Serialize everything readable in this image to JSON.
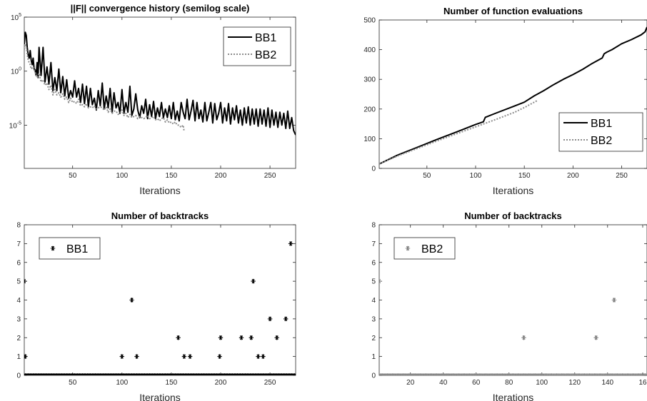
{
  "chart_data": [
    {
      "id": "p1",
      "type": "line",
      "title": "||F|| convergence history (semilog scale)",
      "xlabel": "Iterations",
      "ylabel": "",
      "yscale": "log",
      "xlim": [
        1,
        276
      ],
      "ylim": [
        -9,
        5
      ],
      "xticks": [
        50,
        100,
        150,
        200,
        250
      ],
      "yticks": [
        {
          "v": 5,
          "base": "10",
          "exp": "5"
        },
        {
          "v": 0,
          "base": "10",
          "exp": "0"
        },
        {
          "v": -5,
          "base": "10",
          "exp": "-5"
        }
      ],
      "legend": "top-right",
      "series": [
        {
          "name": "BB1",
          "style": "solid",
          "color": "#000000",
          "width": 2,
          "x": [
            1,
            2,
            3,
            4,
            5,
            6,
            7,
            8,
            9,
            10,
            11,
            12,
            13,
            14,
            15,
            16,
            18,
            20,
            22,
            24,
            26,
            28,
            30,
            32,
            34,
            36,
            38,
            40,
            42,
            44,
            46,
            48,
            50,
            52,
            54,
            56,
            58,
            60,
            62,
            64,
            66,
            68,
            70,
            72,
            74,
            76,
            78,
            80,
            82,
            84,
            86,
            88,
            90,
            92,
            94,
            96,
            98,
            100,
            102,
            104,
            106,
            108,
            110,
            112,
            114,
            116,
            118,
            120,
            122,
            124,
            126,
            128,
            130,
            132,
            134,
            136,
            138,
            140,
            142,
            144,
            146,
            148,
            150,
            152,
            154,
            156,
            158,
            160,
            162,
            164,
            166,
            168,
            170,
            172,
            174,
            176,
            178,
            180,
            182,
            184,
            186,
            188,
            190,
            192,
            194,
            196,
            198,
            200,
            202,
            204,
            206,
            208,
            210,
            212,
            214,
            216,
            218,
            220,
            222,
            224,
            226,
            228,
            230,
            232,
            234,
            236,
            238,
            240,
            242,
            244,
            246,
            248,
            250,
            252,
            254,
            256,
            258,
            260,
            262,
            264,
            266,
            268,
            270,
            272,
            274,
            276
          ],
          "y": [
            2.5,
            3.6,
            3.3,
            2.2,
            1.5,
            1.2,
            1.9,
            1.0,
            0.6,
            1.2,
            0.2,
            0.1,
            -0.4,
            0.8,
            -0.6,
            2.2,
            -0.4,
            2.2,
            -1.0,
            0.4,
            -1.2,
            0.8,
            -1.8,
            -0.6,
            -1.8,
            0.2,
            -2.0,
            -0.5,
            -2.3,
            -0.8,
            -2.5,
            -1.8,
            -2.4,
            -0.9,
            -2.4,
            -1.6,
            -2.9,
            -1.2,
            -3.0,
            -1.4,
            -3.3,
            -1.6,
            -3.1,
            -2.5,
            -3.6,
            -1.8,
            -3.2,
            -1.1,
            -3.5,
            -2.3,
            -3.4,
            -1.6,
            -3.8,
            -2.0,
            -3.4,
            -2.9,
            -3.9,
            -1.7,
            -3.9,
            -2.9,
            -3.8,
            -1.4,
            -4.1,
            -3.5,
            -2.1,
            -3.6,
            -4.3,
            -3.2,
            -3.9,
            -2.6,
            -4.4,
            -3.1,
            -4.2,
            -2.8,
            -4.4,
            -3.4,
            -4.2,
            -2.9,
            -4.3,
            -3.5,
            -4.3,
            -3.2,
            -4.4,
            -2.9,
            -4.5,
            -3.7,
            -4.6,
            -2.9,
            -3.8,
            -4.4,
            -2.6,
            -4.5,
            -3.7,
            -2.7,
            -4.6,
            -2.9,
            -4.4,
            -3.6,
            -4.7,
            -2.9,
            -4.6,
            -3.8,
            -2.9,
            -4.8,
            -3.0,
            -4.5,
            -3.9,
            -2.9,
            -4.8,
            -3.4,
            -4.6,
            -3.0,
            -4.9,
            -3.4,
            -4.5,
            -3.2,
            -4.8,
            -3.6,
            -5.0,
            -3.4,
            -4.8,
            -3.3,
            -5.0,
            -3.5,
            -4.9,
            -3.5,
            -5.1,
            -3.5,
            -4.9,
            -3.6,
            -5.1,
            -3.4,
            -5.2,
            -3.6,
            -5.0,
            -3.8,
            -5.2,
            -3.8,
            -5.0,
            -3.9,
            -5.3,
            -3.7,
            -5.3,
            -4.3,
            -5.5,
            -5.9
          ]
        },
        {
          "name": "BB2",
          "style": "dotted",
          "color": "#8c8c8c",
          "width": 2,
          "x": [
            1,
            2,
            3,
            4,
            5,
            6,
            7,
            8,
            10,
            12,
            14,
            16,
            18,
            20,
            22,
            24,
            26,
            28,
            30,
            32,
            34,
            36,
            38,
            40,
            42,
            44,
            46,
            48,
            50,
            52,
            54,
            56,
            58,
            60,
            62,
            64,
            66,
            68,
            70,
            72,
            74,
            76,
            78,
            80,
            82,
            84,
            86,
            88,
            90,
            92,
            94,
            96,
            98,
            100,
            102,
            104,
            106,
            108,
            110,
            112,
            114,
            116,
            118,
            120,
            122,
            124,
            126,
            128,
            130,
            132,
            134,
            136,
            138,
            140,
            142,
            144,
            146,
            148,
            150,
            152,
            154,
            156,
            158,
            160,
            162,
            163
          ],
          "y": [
            2.0,
            2.5,
            2.3,
            1.6,
            1.0,
            0.8,
            0.6,
            0.2,
            0.4,
            -0.1,
            -0.6,
            -0.2,
            -1.0,
            -0.8,
            -1.3,
            -1.1,
            -1.7,
            -1.3,
            -2.2,
            -1.7,
            -2.2,
            -2.0,
            -2.4,
            -2.1,
            -2.6,
            -2.4,
            -2.9,
            -2.5,
            -2.9,
            -2.8,
            -3.0,
            -2.6,
            -3.2,
            -3.1,
            -3.3,
            -3.0,
            -3.4,
            -3.3,
            -3.4,
            -3.2,
            -3.5,
            -3.4,
            -3.3,
            -3.4,
            -3.6,
            -3.3,
            -3.8,
            -3.5,
            -3.9,
            -3.7,
            -3.7,
            -4.0,
            -3.9,
            -3.6,
            -4.1,
            -3.9,
            -4.3,
            -4.0,
            -4.3,
            -4.2,
            -4.1,
            -4.4,
            -4.2,
            -4.3,
            -4.4,
            -4.3,
            -4.1,
            -4.4,
            -4.3,
            -4.2,
            -4.5,
            -4.4,
            -4.6,
            -4.4,
            -4.3,
            -4.7,
            -4.5,
            -4.8,
            -4.7,
            -4.9,
            -4.7,
            -5.0,
            -5.0,
            -5.2,
            -5.0,
            -5.6
          ]
        }
      ]
    },
    {
      "id": "p2",
      "type": "line",
      "title": "Number of function evaluations",
      "xlabel": "Iterations",
      "ylabel": "",
      "xlim": [
        1,
        276
      ],
      "ylim": [
        0,
        500
      ],
      "xticks": [
        50,
        100,
        150,
        200,
        250
      ],
      "yticks": [
        0,
        100,
        200,
        300,
        400,
        500
      ],
      "legend": "bottom-right",
      "series": [
        {
          "name": "BB1",
          "style": "solid",
          "color": "#000000",
          "width": 2,
          "x": [
            1,
            20,
            40,
            60,
            80,
            100,
            108,
            110,
            120,
            140,
            150,
            160,
            170,
            180,
            190,
            200,
            210,
            220,
            230,
            232,
            235,
            240,
            250,
            260,
            270,
            274,
            276
          ],
          "y": [
            15,
            45,
            71,
            97,
            122,
            148,
            157,
            172,
            185,
            210,
            223,
            244,
            262,
            282,
            300,
            316,
            334,
            354,
            372,
            386,
            392,
            400,
            420,
            434,
            450,
            460,
            476
          ]
        },
        {
          "name": "BB2",
          "style": "dotted",
          "color": "#8c8c8c",
          "width": 2,
          "x": [
            1,
            20,
            40,
            60,
            80,
            100,
            120,
            140,
            150,
            163
          ],
          "y": [
            15,
            42,
            67,
            92,
            116,
            140,
            164,
            189,
            205,
            228
          ]
        }
      ]
    },
    {
      "id": "p3",
      "type": "scatter",
      "title": "Number of backtracks",
      "xlabel": "Iterations",
      "ylabel": "",
      "xlim": [
        1,
        276
      ],
      "ylim": [
        0,
        8
      ],
      "xticks": [
        50,
        100,
        150,
        200,
        250
      ],
      "yticks": [
        0,
        1,
        2,
        3,
        4,
        5,
        6,
        7,
        8
      ],
      "legend": "top-left",
      "series": [
        {
          "name": "BB1",
          "marker": "*",
          "color": "#000000",
          "zero_range": [
            1,
            276
          ],
          "x": [
            1,
            2,
            100,
            110,
            115,
            157,
            163,
            169,
            199,
            200,
            221,
            231,
            233,
            238,
            243,
            250,
            257,
            266,
            271
          ],
          "y": [
            5,
            1,
            1,
            4,
            1,
            2,
            1,
            1,
            1,
            2,
            2,
            2,
            5,
            1,
            1,
            3,
            2,
            3,
            7
          ]
        }
      ]
    },
    {
      "id": "p4",
      "type": "scatter",
      "title": "Number of backtracks",
      "xlabel": "Iterations",
      "ylabel": "",
      "xlim": [
        1,
        164
      ],
      "ylim": [
        0,
        8
      ],
      "xticks": [
        20,
        40,
        60,
        80,
        100,
        120,
        140,
        16
      ],
      "yticks": [
        0,
        1,
        2,
        3,
        4,
        5,
        6,
        7,
        8
      ],
      "legend": "top-left",
      "series": [
        {
          "name": "BB2",
          "marker": "*",
          "color": "#808080",
          "zero_range": [
            1,
            164
          ],
          "x": [
            1,
            89,
            133,
            144
          ],
          "y": [
            5,
            2,
            2,
            4
          ]
        }
      ]
    }
  ]
}
